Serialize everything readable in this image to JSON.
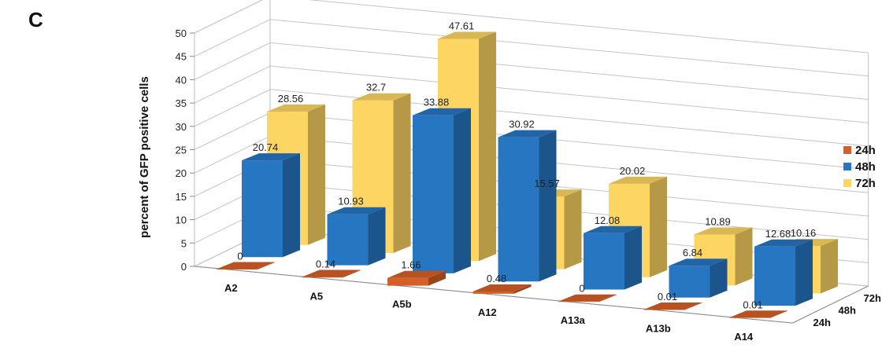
{
  "panel_label": "C",
  "chart_data": {
    "type": "bar",
    "style": "3d-clustered-depth",
    "title": "",
    "xlabel": "",
    "ylabel": "percent of GFP positive cells",
    "ylim": [
      0,
      50
    ],
    "yticks": [
      0,
      5,
      10,
      15,
      20,
      25,
      30,
      35,
      40,
      45,
      50
    ],
    "grid": true,
    "legend_position": "right",
    "categories": [
      "A2",
      "A5",
      "A5b",
      "A12",
      "A13a",
      "A13b",
      "A14"
    ],
    "series": [
      {
        "name": "24h",
        "color": "#D65F27",
        "values": [
          0,
          0.14,
          1.66,
          0.48,
          0,
          0.01,
          0.01
        ]
      },
      {
        "name": "48h",
        "color": "#2676C2",
        "values": [
          20.74,
          10.93,
          33.88,
          30.92,
          12.08,
          6.84,
          12.68
        ]
      },
      {
        "name": "72h",
        "color": "#FCD563",
        "values": [
          28.56,
          32.7,
          47.61,
          15.57,
          20.02,
          10.89,
          10.16
        ]
      }
    ]
  }
}
